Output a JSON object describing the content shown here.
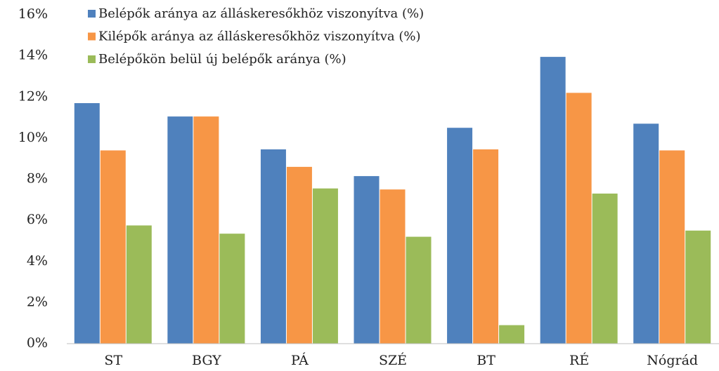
{
  "chart_data": {
    "type": "bar",
    "categories": [
      "ST",
      "BGY",
      "PÁ",
      "SZÉ",
      "BT",
      "RÉ",
      "Nógrád"
    ],
    "series": [
      {
        "name": "Belépők aránya az álláskeresőkhöz viszonyítva (%)",
        "color": "#4f81bd",
        "values": [
          11.7,
          11.05,
          9.45,
          8.15,
          10.5,
          13.95,
          10.7
        ]
      },
      {
        "name": "Kilépők aránya az álláskeresőkhöz viszonyítva (%)",
        "color": "#f79646",
        "values": [
          9.4,
          11.05,
          8.6,
          7.5,
          9.45,
          12.2,
          9.4
        ]
      },
      {
        "name": "Belépőkön belül új belépők aránya (%)",
        "color": "#9bbb59",
        "values": [
          5.75,
          5.35,
          7.55,
          5.2,
          0.9,
          7.3,
          5.5
        ]
      }
    ],
    "ylim": [
      0,
      16
    ],
    "yticks": [
      {
        "value": 0,
        "label": "0%"
      },
      {
        "value": 2,
        "label": "2%"
      },
      {
        "value": 4,
        "label": "4%"
      },
      {
        "value": 6,
        "label": "6%"
      },
      {
        "value": 8,
        "label": "8%"
      },
      {
        "value": 10,
        "label": "10%"
      },
      {
        "value": 12,
        "label": "12%"
      },
      {
        "value": 14,
        "label": "14%"
      },
      {
        "value": 16,
        "label": "16%"
      }
    ],
    "grid": false,
    "legend": "top-left"
  }
}
